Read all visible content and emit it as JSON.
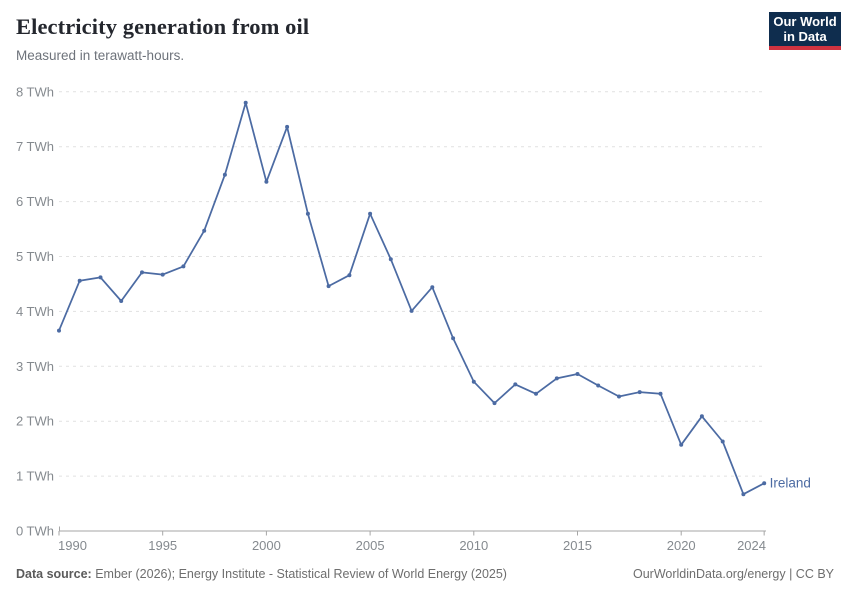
{
  "header": {
    "title": "Electricity generation from oil",
    "subtitle": "Measured in terawatt-hours."
  },
  "logo": {
    "line1": "Our World",
    "line2": "in Data",
    "bg_color": "#0f2d4e",
    "accent_color": "#d03340"
  },
  "footer": {
    "datasource_label": "Data source:",
    "datasource_text": " Ember (2026); Energy Institute - Statistical Review of World Energy (2025)",
    "right_text": "OurWorldinData.org/energy | CC BY"
  },
  "colors": {
    "line": "#4C6BA3",
    "gridline": "#e1e1e1",
    "axis": "#a6a6a6",
    "tick_label": "#858a8f",
    "title": "#24272e",
    "subtitle": "#6e737b"
  },
  "chart_data": {
    "type": "line",
    "title": "Electricity generation from oil",
    "subtitle": "Measured in terawatt-hours.",
    "unit": "TWh",
    "grid": "horizontal-dashed",
    "legend": "end-of-line-label",
    "ylim": [
      0,
      8
    ],
    "yticks": [
      0,
      1,
      2,
      3,
      4,
      5,
      6,
      7,
      8
    ],
    "ytick_suffix": " TWh",
    "xticks": [
      1990,
      1995,
      2000,
      2005,
      2010,
      2015,
      2020,
      2024
    ],
    "x": [
      1990,
      1991,
      1992,
      1993,
      1994,
      1995,
      1996,
      1997,
      1998,
      1999,
      2000,
      2001,
      2002,
      2003,
      2004,
      2005,
      2006,
      2007,
      2008,
      2009,
      2010,
      2011,
      2012,
      2013,
      2014,
      2015,
      2016,
      2017,
      2018,
      2019,
      2020,
      2021,
      2022,
      2023,
      2024
    ],
    "series": [
      {
        "name": "Ireland",
        "color": "#4C6BA3",
        "values": [
          3.65,
          4.56,
          4.62,
          4.19,
          4.71,
          4.67,
          4.82,
          5.47,
          6.49,
          7.8,
          6.36,
          7.36,
          5.78,
          4.46,
          4.66,
          5.78,
          4.95,
          4.01,
          4.44,
          3.51,
          2.72,
          2.33,
          2.67,
          2.5,
          2.78,
          2.86,
          2.65,
          2.45,
          2.53,
          2.5,
          1.57,
          2.09,
          1.63,
          0.67,
          0.87
        ]
      }
    ]
  }
}
